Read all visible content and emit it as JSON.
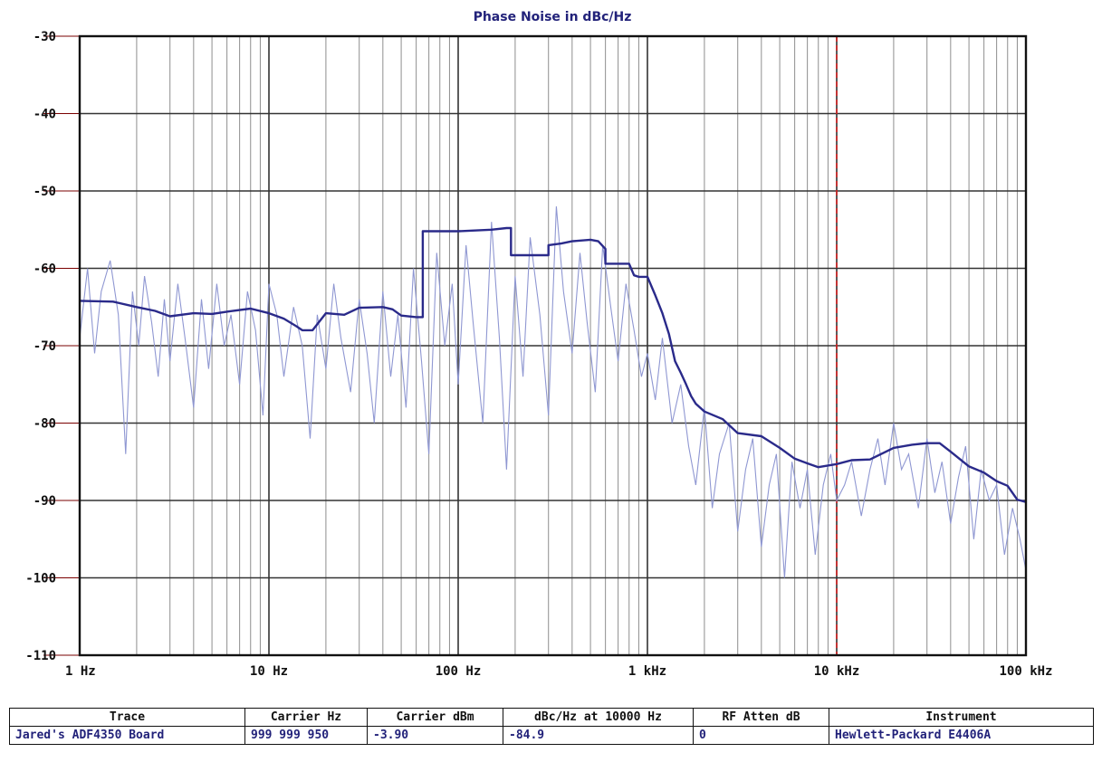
{
  "colors": {
    "trace": "#2a2a8a",
    "raw": "#8f97d2",
    "grid_major": "#333333",
    "grid_minor": "#8e8e8e",
    "marker": "#d42020",
    "text": "#22227a",
    "y_ref_lines": "#7a0000"
  },
  "chart_data": {
    "type": "line",
    "title": "Phase Noise in dBc/Hz",
    "x_scale": "log",
    "xlim": [
      1,
      100000
    ],
    "ylim": [
      -110,
      -30
    ],
    "grid": true,
    "x_ticks": [
      {
        "value": 1,
        "label": "1 Hz"
      },
      {
        "value": 10,
        "label": "10 Hz"
      },
      {
        "value": 100,
        "label": "100 Hz"
      },
      {
        "value": 1000,
        "label": "1 kHz"
      },
      {
        "value": 10000,
        "label": "10 kHz"
      },
      {
        "value": 100000,
        "label": "100 kHz"
      }
    ],
    "y_ticks": [
      {
        "value": -30,
        "label": "-30"
      },
      {
        "value": -40,
        "label": "-40"
      },
      {
        "value": -50,
        "label": "-50"
      },
      {
        "value": -60,
        "label": "-60"
      },
      {
        "value": -70,
        "label": "-70"
      },
      {
        "value": -80,
        "label": "-80"
      },
      {
        "value": -90,
        "label": "-90"
      },
      {
        "value": -100,
        "label": "-100"
      },
      {
        "value": -110,
        "label": "-110"
      }
    ],
    "marker_x": 10000,
    "series": [
      {
        "style": "smoothed",
        "x": [
          1,
          1.5,
          2,
          2.5,
          3,
          4,
          5,
          6,
          8,
          10,
          12,
          14,
          15,
          17,
          20,
          25,
          30,
          40,
          45,
          50,
          60,
          62,
          65,
          65,
          100,
          150,
          180,
          190,
          190,
          250,
          300,
          300,
          350,
          400,
          500,
          550,
          600,
          600,
          700,
          800,
          850,
          900,
          1000,
          1100,
          1200,
          1300,
          1400,
          1500,
          1600,
          1700,
          1800,
          2000,
          2500,
          3000,
          4000,
          5000,
          6000,
          7000,
          8000,
          10000,
          12000,
          15000,
          20000,
          25000,
          30000,
          35000,
          40000,
          50000,
          60000,
          70000,
          80000,
          90000,
          100000
        ],
        "y": [
          -64.2,
          -64.3,
          -65,
          -65.5,
          -66.2,
          -65.8,
          -65.9,
          -65.6,
          -65.2,
          -65.8,
          -66.5,
          -67.5,
          -68,
          -68,
          -65.8,
          -66,
          -65.1,
          -65,
          -65.3,
          -66.1,
          -66.3,
          -66.3,
          -66.3,
          -55.2,
          -55.2,
          -55,
          -54.8,
          -54.8,
          -58.3,
          -58.3,
          -58.3,
          -57,
          -56.8,
          -56.5,
          -56.3,
          -56.5,
          -57.5,
          -59.4,
          -59.4,
          -59.4,
          -60.9,
          -61.1,
          -61.1,
          -63.5,
          -65.8,
          -68.5,
          -72,
          -73.5,
          -75,
          -76.5,
          -77.5,
          -78.5,
          -79.5,
          -81.3,
          -81.7,
          -83.2,
          -84.6,
          -85.2,
          -85.7,
          -85.3,
          -84.8,
          -84.7,
          -83.2,
          -82.8,
          -82.6,
          -82.6,
          -83.7,
          -85.6,
          -86.4,
          -87.5,
          -88.1,
          -89.9,
          -90.2
        ]
      },
      {
        "style": "raw",
        "x": [
          1,
          1.1,
          1.2,
          1.3,
          1.45,
          1.6,
          1.75,
          1.9,
          2.05,
          2.2,
          2.4,
          2.6,
          2.8,
          3,
          3.3,
          3.6,
          4,
          4.4,
          4.8,
          5.3,
          5.8,
          6.3,
          7,
          7.7,
          8.5,
          9.3,
          10,
          11,
          12,
          13.5,
          15,
          16.5,
          18,
          20,
          22,
          24,
          27,
          30,
          33,
          36,
          40,
          44,
          48,
          53,
          58,
          64,
          70,
          77,
          85,
          93,
          100,
          110,
          120,
          135,
          150,
          165,
          180,
          200,
          220,
          240,
          270,
          300,
          330,
          360,
          400,
          440,
          480,
          530,
          580,
          640,
          700,
          770,
          850,
          930,
          1000,
          1100,
          1200,
          1350,
          1500,
          1650,
          1800,
          2000,
          2200,
          2400,
          2700,
          3000,
          3300,
          3600,
          4000,
          4400,
          4800,
          5300,
          5800,
          6400,
          7000,
          7700,
          8500,
          9300,
          10000,
          11000,
          12000,
          13500,
          15000,
          16500,
          18000,
          20000,
          22000,
          24000,
          27000,
          30000,
          33000,
          36000,
          40000,
          44000,
          48000,
          53000,
          58000,
          64000,
          70000,
          77000,
          85000,
          93000,
          100000
        ],
        "y": [
          -69,
          -60,
          -71,
          -63,
          -59,
          -66,
          -84,
          -63,
          -70,
          -61,
          -67,
          -74,
          -64,
          -72,
          -62,
          -69,
          -78,
          -64,
          -73,
          -62,
          -70,
          -66,
          -75,
          -63,
          -68,
          -79,
          -62,
          -66,
          -74,
          -65,
          -70,
          -82,
          -66,
          -73,
          -62,
          -69,
          -76,
          -64,
          -71,
          -80,
          -63,
          -74,
          -66,
          -78,
          -60,
          -72,
          -84,
          -58,
          -70,
          -62,
          -75,
          -57,
          -67,
          -80,
          -54,
          -69,
          -86,
          -61,
          -74,
          -56,
          -66,
          -79,
          -52,
          -63,
          -71,
          -58,
          -67,
          -76,
          -57,
          -65,
          -72,
          -62,
          -68,
          -74,
          -71,
          -77,
          -69,
          -80,
          -75,
          -83,
          -88,
          -78,
          -91,
          -84,
          -80,
          -94,
          -86,
          -82,
          -96,
          -88,
          -84,
          -100,
          -85,
          -91,
          -86,
          -97,
          -88,
          -84,
          -90,
          -88,
          -85,
          -92,
          -86,
          -82,
          -88,
          -80,
          -86,
          -84,
          -91,
          -82,
          -89,
          -85,
          -93,
          -87,
          -83,
          -95,
          -86,
          -90,
          -88,
          -97,
          -91,
          -95,
          -99
        ]
      }
    ]
  },
  "table": {
    "headers": [
      "Trace",
      "Carrier Hz",
      "Carrier dBm",
      "dBc/Hz at 10000 Hz",
      "RF Atten dB",
      "Instrument"
    ],
    "values": [
      "Jared's ADF4350 Board",
      "999 999 950",
      "-3.90",
      "-84.9",
      "0",
      "Hewlett-Packard E4406A"
    ]
  }
}
